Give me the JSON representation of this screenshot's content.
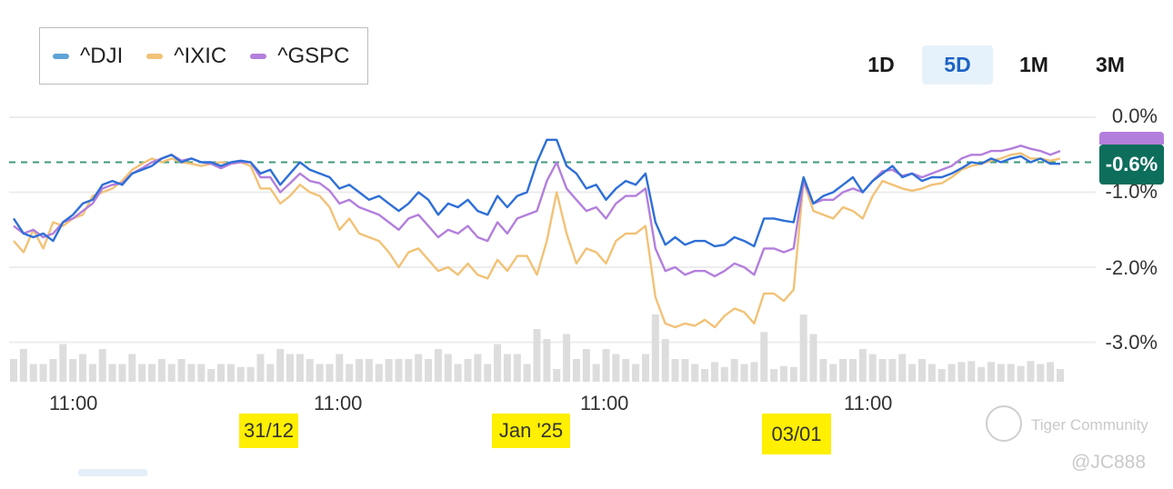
{
  "legend": {
    "items": [
      {
        "label": "^DJI",
        "color": "#5ea3d6"
      },
      {
        "label": "^IXIC",
        "color": "#f2c277"
      },
      {
        "label": "^GSPC",
        "color": "#b37fdc"
      }
    ]
  },
  "range_buttons": [
    {
      "label": "1D",
      "active": false
    },
    {
      "label": "5D",
      "active": true
    },
    {
      "label": "1M",
      "active": false
    },
    {
      "label": "3M",
      "active": false
    }
  ],
  "current_value_badge": "-0.6%",
  "watermark": {
    "text": "Tiger Community",
    "handle": "@JC888"
  },
  "colors": {
    "dji_line": "#2e6fd6",
    "ixic_line": "#f2c277",
    "gspc_line": "#b37fdc",
    "reference_line": "#3f9a79",
    "badge": "#0d6e5c",
    "volume": "#dddddd",
    "highlight": "#ffef00"
  },
  "chart_data": {
    "type": "line",
    "y_tick_labels": [
      "0.0%",
      "-1.0%",
      "-2.0%",
      "-3.0%"
    ],
    "ylim": [
      -3.5,
      0.2
    ],
    "x_tick_labels": [
      "11:00",
      "11:00",
      "11:00",
      "11:00"
    ],
    "x_date_labels": [
      "31/12",
      "Jan '25",
      "03/01"
    ],
    "reference_value": -0.6,
    "grid": true,
    "legend_position": "top-left",
    "series": [
      {
        "name": "^DJI",
        "values": [
          -1.35,
          -1.55,
          -1.6,
          -1.55,
          -1.65,
          -1.4,
          -1.3,
          -1.15,
          -1.1,
          -0.9,
          -0.85,
          -0.9,
          -0.75,
          -0.7,
          -0.65,
          -0.55,
          -0.5,
          -0.6,
          -0.55,
          -0.6,
          -0.6,
          -0.65,
          -0.6,
          -0.58,
          -0.6,
          -0.75,
          -0.7,
          -0.9,
          -0.75,
          -0.6,
          -0.7,
          -0.75,
          -0.8,
          -0.95,
          -0.9,
          -1.0,
          -1.1,
          -1.05,
          -1.15,
          -1.25,
          -1.15,
          -1.0,
          -1.1,
          -1.3,
          -1.15,
          -1.2,
          -1.1,
          -1.25,
          -1.3,
          -1.05,
          -1.2,
          -1.05,
          -1.0,
          -0.6,
          -0.3,
          -0.3,
          -0.65,
          -0.75,
          -0.95,
          -0.9,
          -1.1,
          -0.95,
          -0.85,
          -0.9,
          -0.75,
          -1.4,
          -1.7,
          -1.6,
          -1.7,
          -1.65,
          -1.65,
          -1.72,
          -1.7,
          -1.6,
          -1.65,
          -1.72,
          -1.35,
          -1.35,
          -1.38,
          -1.4,
          -0.8,
          -1.15,
          -1.05,
          -1.0,
          -0.9,
          -0.8,
          -1.0,
          -0.85,
          -0.75,
          -0.65,
          -0.8,
          -0.75,
          -0.85,
          -0.8,
          -0.8,
          -0.75,
          -0.68,
          -0.6,
          -0.62,
          -0.55,
          -0.6,
          -0.55,
          -0.52,
          -0.6,
          -0.55,
          -0.62,
          -0.62
        ]
      },
      {
        "name": "^IXIC",
        "values": [
          -1.65,
          -1.8,
          -1.5,
          -1.75,
          -1.4,
          -1.45,
          -1.35,
          -1.3,
          -1.05,
          -1.0,
          -0.95,
          -0.85,
          -0.7,
          -0.62,
          -0.55,
          -0.6,
          -0.55,
          -0.6,
          -0.62,
          -0.65,
          -0.62,
          -0.6,
          -0.62,
          -0.6,
          -0.65,
          -0.95,
          -0.95,
          -1.15,
          -1.05,
          -0.9,
          -1.0,
          -1.05,
          -1.2,
          -1.5,
          -1.35,
          -1.55,
          -1.6,
          -1.65,
          -1.8,
          -2.0,
          -1.8,
          -1.75,
          -1.9,
          -2.05,
          -2.0,
          -2.1,
          -1.95,
          -2.1,
          -2.15,
          -1.9,
          -2.05,
          -1.85,
          -1.85,
          -2.1,
          -1.65,
          -1.0,
          -1.55,
          -1.95,
          -1.75,
          -1.8,
          -1.95,
          -1.65,
          -1.55,
          -1.55,
          -1.45,
          -2.4,
          -2.75,
          -2.8,
          -2.75,
          -2.78,
          -2.7,
          -2.8,
          -2.65,
          -2.55,
          -2.6,
          -2.75,
          -2.35,
          -2.35,
          -2.45,
          -2.3,
          -0.85,
          -1.25,
          -1.3,
          -1.35,
          -1.2,
          -1.25,
          -1.35,
          -1.05,
          -0.85,
          -0.9,
          -0.95,
          -0.98,
          -0.95,
          -0.9,
          -0.88,
          -0.8,
          -0.7,
          -0.65,
          -0.62,
          -0.58,
          -0.55,
          -0.5,
          -0.48,
          -0.55,
          -0.55,
          -0.58,
          -0.55
        ]
      },
      {
        "name": "^GSPC",
        "values": [
          -1.45,
          -1.55,
          -1.5,
          -1.6,
          -1.55,
          -1.4,
          -1.35,
          -1.25,
          -1.15,
          -0.95,
          -0.9,
          -0.88,
          -0.75,
          -0.68,
          -0.6,
          -0.55,
          -0.5,
          -0.58,
          -0.55,
          -0.6,
          -0.62,
          -0.68,
          -0.62,
          -0.6,
          -0.6,
          -0.8,
          -0.8,
          -1.0,
          -0.88,
          -0.75,
          -0.85,
          -0.88,
          -0.98,
          -1.15,
          -1.1,
          -1.2,
          -1.25,
          -1.3,
          -1.4,
          -1.5,
          -1.35,
          -1.3,
          -1.45,
          -1.6,
          -1.5,
          -1.55,
          -1.45,
          -1.6,
          -1.65,
          -1.4,
          -1.55,
          -1.35,
          -1.3,
          -1.25,
          -0.85,
          -0.6,
          -0.95,
          -1.1,
          -1.25,
          -1.2,
          -1.35,
          -1.15,
          -1.05,
          -1.05,
          -0.95,
          -1.75,
          -2.05,
          -2.0,
          -2.1,
          -2.05,
          -2.05,
          -2.12,
          -2.05,
          -1.95,
          -2.0,
          -2.1,
          -1.75,
          -1.75,
          -1.8,
          -1.75,
          -0.85,
          -1.15,
          -1.1,
          -1.1,
          -1.0,
          -0.95,
          -1.0,
          -0.85,
          -0.72,
          -0.7,
          -0.78,
          -0.75,
          -0.8,
          -0.75,
          -0.7,
          -0.65,
          -0.55,
          -0.5,
          -0.5,
          -0.45,
          -0.45,
          -0.42,
          -0.38,
          -0.42,
          -0.45,
          -0.5,
          -0.45
        ]
      }
    ]
  }
}
